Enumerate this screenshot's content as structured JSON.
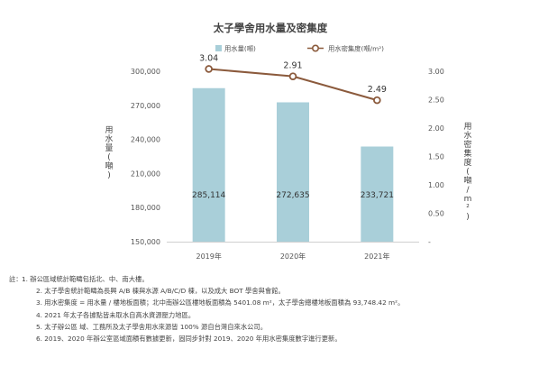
{
  "chart_data": {
    "type": "bar",
    "title": "太子學舍用水量及密集度",
    "categories": [
      "2019年",
      "2020年",
      "2021年"
    ],
    "series": [
      {
        "name": "用水量(噸)",
        "kind": "bar",
        "axis": "left",
        "color": "#a9cfd9",
        "values": [
          285114,
          272635,
          233721
        ],
        "labels": [
          "285,114",
          "272,635",
          "233,721"
        ]
      },
      {
        "name": "用水密集度(噸/m²)",
        "kind": "line",
        "axis": "right",
        "color": "#8b5a3c",
        "values": [
          3.04,
          2.91,
          2.49
        ],
        "labels": [
          "3.04",
          "2.91",
          "2.49"
        ]
      }
    ],
    "left_axis": {
      "label": "用水量(噸)",
      "ylim": [
        150000,
        300000
      ],
      "ticks": [
        150000,
        180000,
        210000,
        240000,
        270000,
        300000
      ],
      "tick_labels": [
        "150,000",
        "180,000",
        "210,000",
        "240,000",
        "270,000",
        "300,000"
      ]
    },
    "right_axis": {
      "label": "用水密集度(噸/m²)",
      "ylim": [
        0,
        3.0
      ],
      "ticks": [
        0,
        0.5,
        1.0,
        1.5,
        2.0,
        2.5,
        3.0
      ],
      "tick_labels": [
        "-",
        "0.50",
        "1.00",
        "1.50",
        "2.00",
        "2.50",
        "3.00"
      ]
    },
    "legend_position": "top-center",
    "grid": false
  },
  "notes": {
    "prefix": "註：",
    "items": [
      "1. 辦公區域統計範疇包括北、中、南大樓。",
      "2. 太子學舍統計範疇為長興 A/B 棟與水源 A/B/C/D 棟，以及成大 BOT 學舍與會館。",
      "3. 用水密集度 = 用水量 / 樓地板面積；北中南辦公區樓地板面積為 5401.08 m²，太子學舍總樓地板面積為 93,748.42 m²。",
      "4. 2021 年太子各據點皆未取水自高水資源壓力地區。",
      "5. 太子辦公區 域、工務所及太子學舍用水來源皆 100% 源自台灣自來水公司。",
      "6. 2019、2020 年辦公室區域面積有數據更新，固同步針對 2019、2020 年用水密集度數字進行更新。"
    ]
  }
}
